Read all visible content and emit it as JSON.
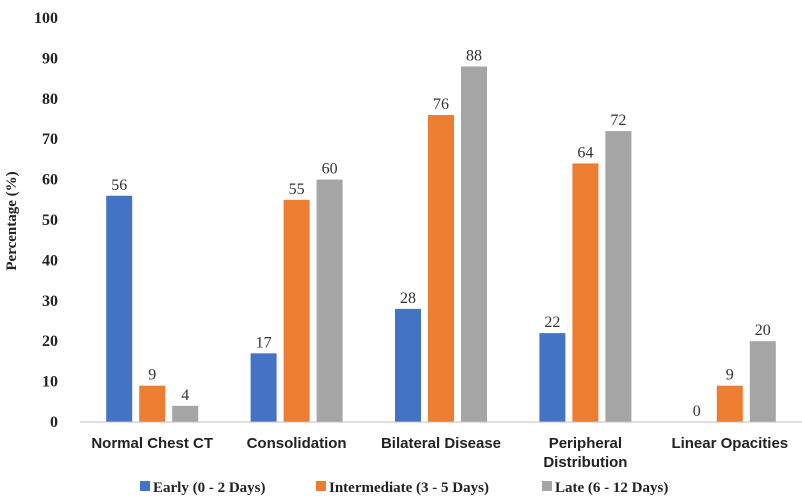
{
  "chart_data": {
    "type": "bar",
    "title": "",
    "xlabel": "",
    "ylabel": "Percentage (%)",
    "ylim": [
      0,
      100
    ],
    "yticks": [
      0,
      10,
      20,
      30,
      40,
      50,
      60,
      70,
      80,
      90,
      100
    ],
    "grid": false,
    "legend_position": "bottom",
    "categories": [
      [
        "Normal Chest CT"
      ],
      [
        "Consolidation"
      ],
      [
        "Bilateral Disease"
      ],
      [
        "Peripheral",
        "Distribution"
      ],
      [
        "Linear Opacities"
      ]
    ],
    "series": [
      {
        "name": "Early (0 - 2 Days)",
        "color": "#4472c4",
        "values": [
          56,
          17,
          28,
          22,
          0
        ]
      },
      {
        "name": "Intermediate (3 - 5 Days)",
        "color": "#ed7d31",
        "values": [
          9,
          55,
          76,
          64,
          9
        ]
      },
      {
        "name": "Late (6 - 12 Days)",
        "color": "#a5a5a5",
        "values": [
          4,
          60,
          88,
          72,
          20
        ]
      }
    ]
  }
}
